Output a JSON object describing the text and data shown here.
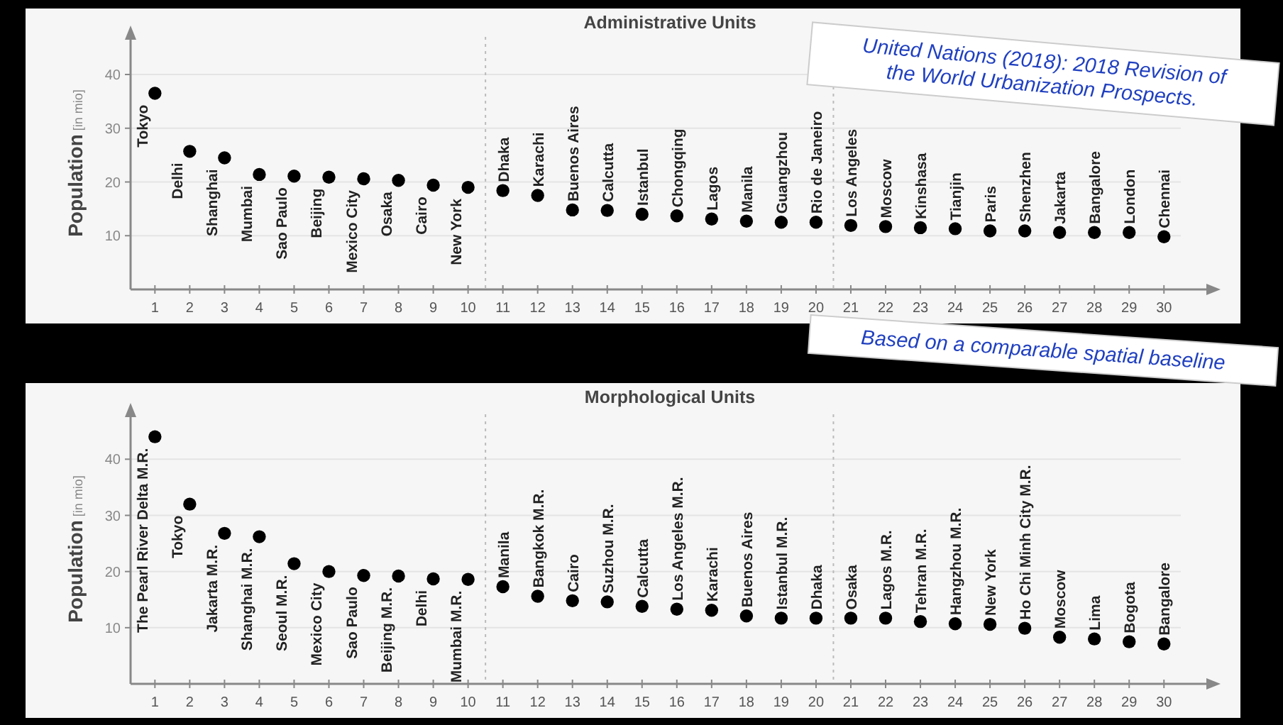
{
  "chart_data": [
    {
      "type": "scatter",
      "title": "Administrative Units",
      "ylabel": "Population [in mio]",
      "x": [
        1,
        2,
        3,
        4,
        5,
        6,
        7,
        8,
        9,
        10,
        11,
        12,
        13,
        14,
        15,
        16,
        17,
        18,
        19,
        20,
        21,
        22,
        23,
        24,
        25,
        26,
        27,
        28,
        29,
        30
      ],
      "xlim": [
        0.3,
        31.3
      ],
      "xticks": [
        1,
        2,
        3,
        4,
        5,
        6,
        7,
        8,
        9,
        10,
        11,
        12,
        13,
        14,
        15,
        16,
        17,
        18,
        19,
        20,
        21,
        22,
        23,
        24,
        25,
        26,
        27,
        28,
        29,
        30
      ],
      "ylim": [
        0,
        47
      ],
      "yticks": [
        10,
        20,
        30,
        40
      ],
      "grid": "y",
      "marker": "circle",
      "series": [
        {
          "color": "#000000",
          "values": [
            36.5,
            25.7,
            24.5,
            21.4,
            21.1,
            20.9,
            20.6,
            20.3,
            19.4,
            19.0,
            18.4,
            17.5,
            14.8,
            14.7,
            14.0,
            13.7,
            13.1,
            12.7,
            12.5,
            12.5,
            11.9,
            11.7,
            11.5,
            11.3,
            10.9,
            10.9,
            10.6,
            10.6,
            10.6,
            9.8
          ]
        }
      ],
      "ref_lines": [
        {
          "axis": "x",
          "value": 10.5,
          "color": "#bbbbbb",
          "line_style": "dotted"
        },
        {
          "axis": "x",
          "value": 20.5,
          "color": "#bbbbbb",
          "line_style": "dotted"
        }
      ],
      "annotations": [
        "United Nations (2018): 2018 Revision of the World Urbanization Prospects.",
        {
          "text": "Tokyo",
          "x": 1,
          "y": 36.5
        },
        {
          "text": "Delhi",
          "x": 2,
          "y": 25.7
        },
        {
          "text": "Shanghai",
          "x": 3,
          "y": 24.5
        },
        {
          "text": "Mumbai",
          "x": 4,
          "y": 21.4
        },
        {
          "text": "Sao Paulo",
          "x": 5,
          "y": 21.1
        },
        {
          "text": "Beijing",
          "x": 6,
          "y": 20.9
        },
        {
          "text": "Mexico City",
          "x": 7,
          "y": 20.6
        },
        {
          "text": "Osaka",
          "x": 8,
          "y": 20.3
        },
        {
          "text": "Cairo",
          "x": 9,
          "y": 19.4
        },
        {
          "text": "New York",
          "x": 10,
          "y": 19.0
        },
        {
          "text": "Dhaka",
          "x": 11,
          "y": 18.4
        },
        {
          "text": "Karachi",
          "x": 12,
          "y": 17.5
        },
        {
          "text": "Buenos Aires",
          "x": 13,
          "y": 14.8
        },
        {
          "text": "Calcutta",
          "x": 14,
          "y": 14.7
        },
        {
          "text": "Istanbul",
          "x": 15,
          "y": 14.0
        },
        {
          "text": "Chongqing",
          "x": 16,
          "y": 13.7
        },
        {
          "text": "Lagos",
          "x": 17,
          "y": 13.1
        },
        {
          "text": "Manila",
          "x": 18,
          "y": 12.7
        },
        {
          "text": "Guangzhou",
          "x": 19,
          "y": 12.5
        },
        {
          "text": "Rio de Janeiro",
          "x": 20,
          "y": 12.5
        },
        {
          "text": "Los Angeles",
          "x": 21,
          "y": 11.9
        },
        {
          "text": "Moscow",
          "x": 22,
          "y": 11.7
        },
        {
          "text": "Kinshasa",
          "x": 23,
          "y": 11.5
        },
        {
          "text": "Tianjin",
          "x": 24,
          "y": 11.3
        },
        {
          "text": "Paris",
          "x": 25,
          "y": 10.9
        },
        {
          "text": "Shenzhen",
          "x": 26,
          "y": 10.9
        },
        {
          "text": "Jakarta",
          "x": 27,
          "y": 10.6
        },
        {
          "text": "Bangalore",
          "x": 28,
          "y": 10.6
        },
        {
          "text": "London",
          "x": 29,
          "y": 10.6
        },
        {
          "text": "Chennai",
          "x": 30,
          "y": 9.8
        }
      ]
    },
    {
      "type": "scatter",
      "title": "Morphological Units",
      "ylabel": "Population [in mio]",
      "x": [
        1,
        2,
        3,
        4,
        5,
        6,
        7,
        8,
        9,
        10,
        11,
        12,
        13,
        14,
        15,
        16,
        17,
        18,
        19,
        20,
        21,
        22,
        23,
        24,
        25,
        26,
        27,
        28,
        29,
        30
      ],
      "xlim": [
        0.3,
        31.3
      ],
      "xticks": [
        1,
        2,
        3,
        4,
        5,
        6,
        7,
        8,
        9,
        10,
        11,
        12,
        13,
        14,
        15,
        16,
        17,
        18,
        19,
        20,
        21,
        22,
        23,
        24,
        25,
        26,
        27,
        28,
        29,
        30
      ],
      "ylim": [
        0,
        48
      ],
      "yticks": [
        10,
        20,
        30,
        40
      ],
      "grid": "y",
      "marker": "circle",
      "series": [
        {
          "color": "#000000",
          "values": [
            44.0,
            32.0,
            26.8,
            26.2,
            21.4,
            20.0,
            19.3,
            19.2,
            18.7,
            18.6,
            17.3,
            15.6,
            14.8,
            14.6,
            13.8,
            13.3,
            13.1,
            12.1,
            11.7,
            11.7,
            11.7,
            11.7,
            11.1,
            10.7,
            10.6,
            9.9,
            8.3,
            8.0,
            7.5,
            7.1
          ]
        }
      ],
      "ref_lines": [
        {
          "axis": "x",
          "value": 10.5,
          "color": "#bbbbbb",
          "line_style": "dotted"
        },
        {
          "axis": "x",
          "value": 20.5,
          "color": "#bbbbbb",
          "line_style": "dotted"
        }
      ],
      "annotations": [
        "Based on a comparable spatial baseline",
        {
          "text": "The Pearl River Delta M.R.",
          "x": 1,
          "y": 44.0
        },
        {
          "text": "Tokyo",
          "x": 2,
          "y": 32.0
        },
        {
          "text": "Jakarta M.R.",
          "x": 3,
          "y": 26.8
        },
        {
          "text": "Shanghai M.R.",
          "x": 4,
          "y": 26.2
        },
        {
          "text": "Seoul M.R.",
          "x": 5,
          "y": 21.4
        },
        {
          "text": "Mexico City",
          "x": 6,
          "y": 20.0
        },
        {
          "text": "Sao Paulo",
          "x": 7,
          "y": 19.3
        },
        {
          "text": "Beijing M.R.",
          "x": 8,
          "y": 19.2
        },
        {
          "text": "Delhi",
          "x": 9,
          "y": 18.7
        },
        {
          "text": "Mumbai M.R.",
          "x": 10,
          "y": 18.6
        },
        {
          "text": "Manila",
          "x": 11,
          "y": 17.3
        },
        {
          "text": "Bangkok M.R.",
          "x": 12,
          "y": 15.6
        },
        {
          "text": "Cairo",
          "x": 13,
          "y": 14.8
        },
        {
          "text": "Suzhou M.R.",
          "x": 14,
          "y": 14.6
        },
        {
          "text": "Calcutta",
          "x": 15,
          "y": 13.8
        },
        {
          "text": "Los Angeles M.R.",
          "x": 16,
          "y": 13.3
        },
        {
          "text": "Karachi",
          "x": 17,
          "y": 13.1
        },
        {
          "text": "Buenos Aires",
          "x": 18,
          "y": 12.1
        },
        {
          "text": "Istanbul M.R.",
          "x": 19,
          "y": 11.7
        },
        {
          "text": "Dhaka",
          "x": 20,
          "y": 11.7
        },
        {
          "text": "Osaka",
          "x": 21,
          "y": 11.7
        },
        {
          "text": "Lagos M.R.",
          "x": 22,
          "y": 11.7
        },
        {
          "text": "Tehran M.R.",
          "x": 23,
          "y": 11.1
        },
        {
          "text": "Hangzhou M.R.",
          "x": 24,
          "y": 10.7
        },
        {
          "text": "New York",
          "x": 25,
          "y": 10.6
        },
        {
          "text": "Ho Chi Minh City M.R.",
          "x": 26,
          "y": 9.9
        },
        {
          "text": "Moscow",
          "x": 27,
          "y": 8.3
        },
        {
          "text": "Lima",
          "x": 28,
          "y": 8.0
        },
        {
          "text": "Bogota",
          "x": 29,
          "y": 7.5
        },
        {
          "text": "Bangalore",
          "x": 30,
          "y": 7.1
        }
      ]
    }
  ]
}
